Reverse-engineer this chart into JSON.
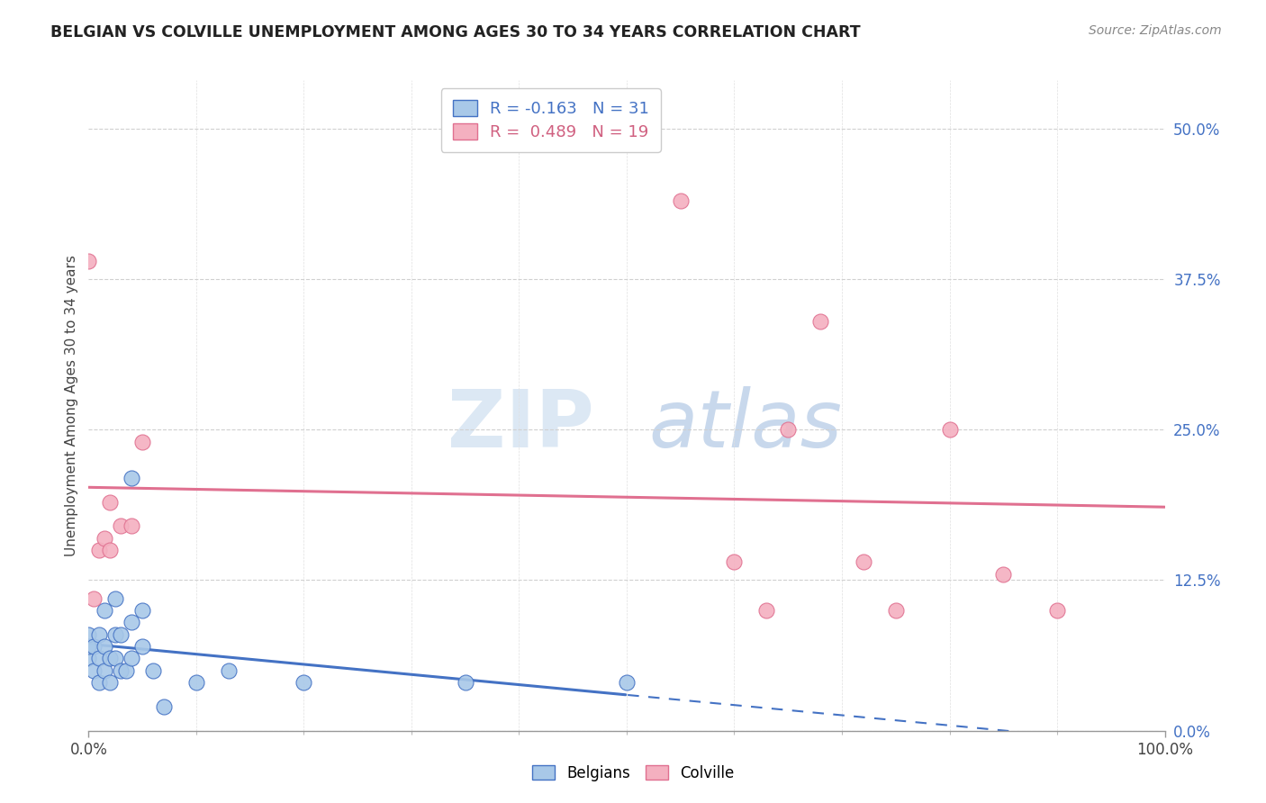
{
  "title": "BELGIAN VS COLVILLE UNEMPLOYMENT AMONG AGES 30 TO 34 YEARS CORRELATION CHART",
  "source": "Source: ZipAtlas.com",
  "ylabel": "Unemployment Among Ages 30 to 34 years",
  "ytick_labels": [
    "0.0%",
    "12.5%",
    "25.0%",
    "37.5%",
    "50.0%"
  ],
  "ytick_values": [
    0.0,
    0.125,
    0.25,
    0.375,
    0.5
  ],
  "xlim": [
    0.0,
    1.0
  ],
  "ylim": [
    0.0,
    0.54
  ],
  "watermark_zip": "ZIP",
  "watermark_atlas": "atlas",
  "belgian_color": "#a8c8e8",
  "colville_color": "#f4b0c0",
  "trendline_belgian_color": "#4472c4",
  "trendline_colville_color": "#e07090",
  "belgian_x": [
    0.0,
    0.0,
    0.0,
    0.005,
    0.005,
    0.01,
    0.01,
    0.01,
    0.015,
    0.015,
    0.015,
    0.02,
    0.02,
    0.025,
    0.025,
    0.025,
    0.03,
    0.03,
    0.035,
    0.04,
    0.04,
    0.04,
    0.05,
    0.05,
    0.06,
    0.07,
    0.1,
    0.13,
    0.2,
    0.35,
    0.5
  ],
  "belgian_y": [
    0.06,
    0.07,
    0.08,
    0.05,
    0.07,
    0.04,
    0.06,
    0.08,
    0.05,
    0.07,
    0.1,
    0.04,
    0.06,
    0.06,
    0.08,
    0.11,
    0.05,
    0.08,
    0.05,
    0.06,
    0.09,
    0.21,
    0.07,
    0.1,
    0.05,
    0.02,
    0.04,
    0.05,
    0.04,
    0.04,
    0.04
  ],
  "colville_x": [
    0.0,
    0.005,
    0.01,
    0.015,
    0.02,
    0.02,
    0.03,
    0.04,
    0.05,
    0.55,
    0.6,
    0.63,
    0.65,
    0.68,
    0.72,
    0.75,
    0.8,
    0.85,
    0.9
  ],
  "colville_y": [
    0.39,
    0.11,
    0.15,
    0.16,
    0.15,
    0.19,
    0.17,
    0.17,
    0.24,
    0.44,
    0.14,
    0.1,
    0.25,
    0.34,
    0.14,
    0.1,
    0.25,
    0.13,
    0.1
  ],
  "background_color": "#ffffff",
  "plot_bg_color": "#ffffff"
}
